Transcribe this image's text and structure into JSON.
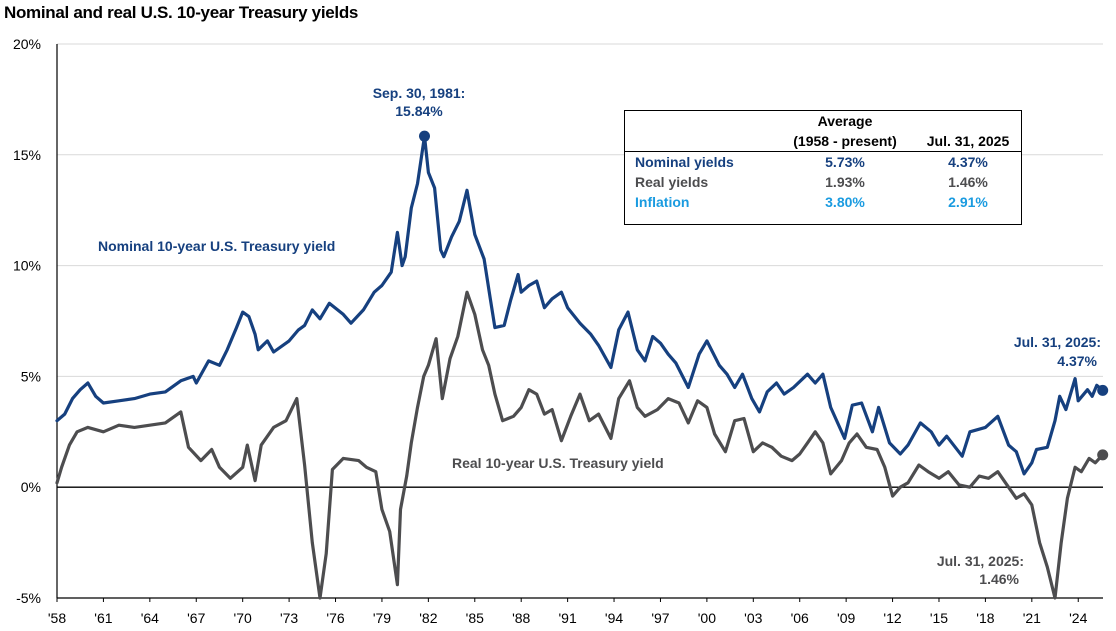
{
  "colors": {
    "nominal": "#16407f",
    "real": "#4d4d4f",
    "inflation": "#1a9be0",
    "axis": "#000000",
    "grid": "#d9d9d9"
  },
  "chart_data": {
    "type": "line",
    "title": "Nominal and real U.S. 10-year Treasury yields",
    "xlim": [
      1958,
      2025.6
    ],
    "ylim": [
      -5,
      20
    ],
    "grid": "horizontal",
    "y_ticks": [
      {
        "value": -5,
        "label": "-5%"
      },
      {
        "value": 0,
        "label": "0%"
      },
      {
        "value": 5,
        "label": "5%"
      },
      {
        "value": 10,
        "label": "10%"
      },
      {
        "value": 15,
        "label": "15%"
      },
      {
        "value": 20,
        "label": "20%"
      }
    ],
    "x_ticks": [
      {
        "value": 1958,
        "label": "'58"
      },
      {
        "value": 1961,
        "label": "'61"
      },
      {
        "value": 1964,
        "label": "'64"
      },
      {
        "value": 1967,
        "label": "'67"
      },
      {
        "value": 1970,
        "label": "'70"
      },
      {
        "value": 1973,
        "label": "'73"
      },
      {
        "value": 1976,
        "label": "'76"
      },
      {
        "value": 1979,
        "label": "'79"
      },
      {
        "value": 1982,
        "label": "'82"
      },
      {
        "value": 1985,
        "label": "'85"
      },
      {
        "value": 1988,
        "label": "'88"
      },
      {
        "value": 1991,
        "label": "'91"
      },
      {
        "value": 1994,
        "label": "'94"
      },
      {
        "value": 1997,
        "label": "'97"
      },
      {
        "value": 2000,
        "label": "'00"
      },
      {
        "value": 2003,
        "label": "'03"
      },
      {
        "value": 2006,
        "label": "'06"
      },
      {
        "value": 2009,
        "label": "'09"
      },
      {
        "value": 2012,
        "label": "'12"
      },
      {
        "value": 2015,
        "label": "'15"
      },
      {
        "value": 2018,
        "label": "'18"
      },
      {
        "value": 2021,
        "label": "'21"
      },
      {
        "value": 2024,
        "label": "'24"
      }
    ],
    "series": [
      {
        "name": "Nominal 10-year U.S. Treasury yield",
        "color": "#16407f",
        "points": [
          [
            1958.0,
            3.0
          ],
          [
            1958.5,
            3.3
          ],
          [
            1959.0,
            4.0
          ],
          [
            1959.5,
            4.4
          ],
          [
            1960.0,
            4.7
          ],
          [
            1960.5,
            4.1
          ],
          [
            1961.0,
            3.8
          ],
          [
            1962.0,
            3.9
          ],
          [
            1963.0,
            4.0
          ],
          [
            1964.0,
            4.2
          ],
          [
            1965.0,
            4.3
          ],
          [
            1966.0,
            4.8
          ],
          [
            1966.8,
            5.0
          ],
          [
            1967.0,
            4.7
          ],
          [
            1967.8,
            5.7
          ],
          [
            1968.5,
            5.5
          ],
          [
            1969.0,
            6.2
          ],
          [
            1969.6,
            7.2
          ],
          [
            1970.0,
            7.9
          ],
          [
            1970.4,
            7.7
          ],
          [
            1970.8,
            6.9
          ],
          [
            1971.0,
            6.2
          ],
          [
            1971.6,
            6.6
          ],
          [
            1972.0,
            6.1
          ],
          [
            1973.0,
            6.6
          ],
          [
            1973.6,
            7.1
          ],
          [
            1974.0,
            7.3
          ],
          [
            1974.5,
            8.0
          ],
          [
            1975.0,
            7.6
          ],
          [
            1975.6,
            8.3
          ],
          [
            1976.5,
            7.8
          ],
          [
            1977.0,
            7.4
          ],
          [
            1977.8,
            8.0
          ],
          [
            1978.5,
            8.8
          ],
          [
            1979.0,
            9.1
          ],
          [
            1979.6,
            9.7
          ],
          [
            1980.0,
            11.5
          ],
          [
            1980.3,
            10.0
          ],
          [
            1980.5,
            10.4
          ],
          [
            1980.9,
            12.6
          ],
          [
            1981.3,
            13.7
          ],
          [
            1981.75,
            15.84
          ],
          [
            1982.0,
            14.2
          ],
          [
            1982.4,
            13.5
          ],
          [
            1982.8,
            10.7
          ],
          [
            1983.0,
            10.4
          ],
          [
            1983.5,
            11.3
          ],
          [
            1984.0,
            12.0
          ],
          [
            1984.5,
            13.4
          ],
          [
            1985.0,
            11.4
          ],
          [
            1985.6,
            10.3
          ],
          [
            1986.0,
            8.5
          ],
          [
            1986.3,
            7.2
          ],
          [
            1986.9,
            7.3
          ],
          [
            1987.3,
            8.4
          ],
          [
            1987.8,
            9.6
          ],
          [
            1988.0,
            8.8
          ],
          [
            1988.5,
            9.1
          ],
          [
            1989.0,
            9.3
          ],
          [
            1989.5,
            8.1
          ],
          [
            1990.0,
            8.5
          ],
          [
            1990.6,
            8.8
          ],
          [
            1991.0,
            8.1
          ],
          [
            1991.8,
            7.4
          ],
          [
            1992.5,
            6.9
          ],
          [
            1993.0,
            6.4
          ],
          [
            1993.8,
            5.4
          ],
          [
            1994.3,
            7.1
          ],
          [
            1994.9,
            7.9
          ],
          [
            1995.5,
            6.2
          ],
          [
            1996.0,
            5.7
          ],
          [
            1996.5,
            6.8
          ],
          [
            1997.0,
            6.5
          ],
          [
            1997.5,
            6.0
          ],
          [
            1998.0,
            5.6
          ],
          [
            1998.8,
            4.5
          ],
          [
            1999.5,
            6.0
          ],
          [
            2000.0,
            6.6
          ],
          [
            2000.8,
            5.5
          ],
          [
            2001.3,
            5.1
          ],
          [
            2001.8,
            4.5
          ],
          [
            2002.3,
            5.1
          ],
          [
            2002.9,
            4.0
          ],
          [
            2003.4,
            3.4
          ],
          [
            2003.9,
            4.3
          ],
          [
            2004.5,
            4.7
          ],
          [
            2005.0,
            4.2
          ],
          [
            2005.6,
            4.5
          ],
          [
            2006.5,
            5.1
          ],
          [
            2007.0,
            4.7
          ],
          [
            2007.5,
            5.1
          ],
          [
            2008.0,
            3.6
          ],
          [
            2008.9,
            2.2
          ],
          [
            2009.4,
            3.7
          ],
          [
            2010.0,
            3.8
          ],
          [
            2010.7,
            2.5
          ],
          [
            2011.1,
            3.6
          ],
          [
            2011.8,
            2.0
          ],
          [
            2012.5,
            1.5
          ],
          [
            2013.0,
            1.9
          ],
          [
            2013.8,
            2.9
          ],
          [
            2014.5,
            2.5
          ],
          [
            2015.0,
            1.9
          ],
          [
            2015.5,
            2.3
          ],
          [
            2016.5,
            1.4
          ],
          [
            2017.0,
            2.5
          ],
          [
            2018.0,
            2.7
          ],
          [
            2018.8,
            3.2
          ],
          [
            2019.5,
            1.9
          ],
          [
            2020.0,
            1.6
          ],
          [
            2020.5,
            0.6
          ],
          [
            2021.0,
            1.1
          ],
          [
            2021.3,
            1.7
          ],
          [
            2022.0,
            1.8
          ],
          [
            2022.5,
            3.0
          ],
          [
            2022.8,
            4.1
          ],
          [
            2023.2,
            3.5
          ],
          [
            2023.8,
            4.9
          ],
          [
            2024.0,
            3.9
          ],
          [
            2024.6,
            4.4
          ],
          [
            2024.9,
            4.1
          ],
          [
            2025.2,
            4.6
          ],
          [
            2025.58,
            4.37
          ]
        ]
      },
      {
        "name": "Real 10-year U.S. Treasury yield",
        "color": "#4d4d4f",
        "points": [
          [
            1958.0,
            0.2
          ],
          [
            1958.3,
            0.9
          ],
          [
            1958.8,
            1.9
          ],
          [
            1959.3,
            2.5
          ],
          [
            1960.0,
            2.7
          ],
          [
            1961.0,
            2.5
          ],
          [
            1962.0,
            2.8
          ],
          [
            1963.0,
            2.7
          ],
          [
            1964.0,
            2.8
          ],
          [
            1965.0,
            2.9
          ],
          [
            1966.0,
            3.4
          ],
          [
            1966.5,
            1.8
          ],
          [
            1967.3,
            1.2
          ],
          [
            1968.0,
            1.7
          ],
          [
            1968.5,
            0.9
          ],
          [
            1969.2,
            0.4
          ],
          [
            1970.0,
            0.9
          ],
          [
            1970.3,
            1.9
          ],
          [
            1970.8,
            0.3
          ],
          [
            1971.2,
            1.9
          ],
          [
            1972.0,
            2.7
          ],
          [
            1972.8,
            3.0
          ],
          [
            1973.5,
            4.0
          ],
          [
            1974.0,
            1.0
          ],
          [
            1974.5,
            -2.5
          ],
          [
            1975.0,
            -5.0
          ],
          [
            1975.4,
            -3.0
          ],
          [
            1975.8,
            0.8
          ],
          [
            1976.5,
            1.3
          ],
          [
            1977.5,
            1.2
          ],
          [
            1978.0,
            0.9
          ],
          [
            1978.6,
            0.7
          ],
          [
            1979.0,
            -1.0
          ],
          [
            1979.5,
            -2.0
          ],
          [
            1980.0,
            -4.4
          ],
          [
            1980.2,
            -1.0
          ],
          [
            1980.6,
            0.5
          ],
          [
            1980.9,
            2.0
          ],
          [
            1981.3,
            3.6
          ],
          [
            1981.7,
            5.0
          ],
          [
            1982.0,
            5.5
          ],
          [
            1982.5,
            6.7
          ],
          [
            1982.9,
            4.0
          ],
          [
            1983.4,
            5.8
          ],
          [
            1983.9,
            6.8
          ],
          [
            1984.5,
            8.8
          ],
          [
            1985.0,
            7.8
          ],
          [
            1985.5,
            6.2
          ],
          [
            1985.9,
            5.5
          ],
          [
            1986.3,
            4.2
          ],
          [
            1986.8,
            3.0
          ],
          [
            1987.5,
            3.2
          ],
          [
            1988.0,
            3.6
          ],
          [
            1988.5,
            4.4
          ],
          [
            1989.0,
            4.2
          ],
          [
            1989.5,
            3.3
          ],
          [
            1990.0,
            3.5
          ],
          [
            1990.6,
            2.1
          ],
          [
            1991.2,
            3.2
          ],
          [
            1991.8,
            4.2
          ],
          [
            1992.4,
            3.0
          ],
          [
            1993.0,
            3.3
          ],
          [
            1993.8,
            2.2
          ],
          [
            1994.3,
            4.0
          ],
          [
            1995.0,
            4.8
          ],
          [
            1995.5,
            3.6
          ],
          [
            1996.0,
            3.2
          ],
          [
            1996.8,
            3.5
          ],
          [
            1997.5,
            4.0
          ],
          [
            1998.2,
            3.8
          ],
          [
            1998.8,
            2.9
          ],
          [
            1999.4,
            3.9
          ],
          [
            2000.0,
            3.6
          ],
          [
            2000.5,
            2.4
          ],
          [
            2001.2,
            1.6
          ],
          [
            2001.8,
            3.0
          ],
          [
            2002.4,
            3.1
          ],
          [
            2003.0,
            1.6
          ],
          [
            2003.6,
            2.0
          ],
          [
            2004.2,
            1.8
          ],
          [
            2004.8,
            1.4
          ],
          [
            2005.5,
            1.2
          ],
          [
            2006.0,
            1.5
          ],
          [
            2006.5,
            2.0
          ],
          [
            2007.0,
            2.5
          ],
          [
            2007.5,
            2.0
          ],
          [
            2008.0,
            0.6
          ],
          [
            2008.7,
            1.2
          ],
          [
            2009.2,
            2.0
          ],
          [
            2009.7,
            2.4
          ],
          [
            2010.3,
            1.8
          ],
          [
            2011.0,
            1.7
          ],
          [
            2011.5,
            0.9
          ],
          [
            2012.0,
            -0.4
          ],
          [
            2012.5,
            0.0
          ],
          [
            2013.0,
            0.2
          ],
          [
            2013.7,
            1.0
          ],
          [
            2014.3,
            0.7
          ],
          [
            2015.0,
            0.4
          ],
          [
            2015.6,
            0.7
          ],
          [
            2016.3,
            0.1
          ],
          [
            2017.0,
            0.0
          ],
          [
            2017.6,
            0.5
          ],
          [
            2018.2,
            0.4
          ],
          [
            2018.8,
            0.7
          ],
          [
            2019.3,
            0.2
          ],
          [
            2020.0,
            -0.5
          ],
          [
            2020.5,
            -0.3
          ],
          [
            2021.0,
            -0.8
          ],
          [
            2021.5,
            -2.5
          ],
          [
            2022.0,
            -3.6
          ],
          [
            2022.5,
            -5.0
          ],
          [
            2022.9,
            -2.5
          ],
          [
            2023.3,
            -0.5
          ],
          [
            2023.8,
            0.9
          ],
          [
            2024.2,
            0.7
          ],
          [
            2024.7,
            1.3
          ],
          [
            2025.1,
            1.1
          ],
          [
            2025.58,
            1.46
          ]
        ]
      }
    ],
    "annotations": [
      {
        "id": "peak",
        "lines": [
          "Sep. 30, 1981:",
          "15.84%"
        ],
        "x": 1981.75,
        "y": 15.84,
        "color": "#16407f"
      },
      {
        "id": "nominal_end",
        "lines": [
          "Jul. 31, 2025:",
          "4.37%"
        ],
        "x": 2025.58,
        "y": 4.37,
        "color": "#16407f"
      },
      {
        "id": "real_end",
        "lines": [
          "Jul. 31, 2025:",
          "1.46%"
        ],
        "x": 2025.58,
        "y": 1.46,
        "color": "#4d4d4f"
      }
    ],
    "series_labels": [
      {
        "text": "Nominal  10-year U.S.  Treasury yield",
        "color": "#16407f"
      },
      {
        "text": "Real 10-year U.S.  Treasury yield",
        "color": "#4d4d4f"
      }
    ]
  },
  "stats_table": {
    "header_top": "Average",
    "col1_header": "(1958 - present)",
    "col2_header": "Jul. 31, 2025",
    "rows": [
      {
        "label": "Nominal yields",
        "avg": "5.73%",
        "current": "4.37%",
        "color": "#16407f"
      },
      {
        "label": "Real yields",
        "avg": "1.93%",
        "current": "1.46%",
        "color": "#4d4d4f"
      },
      {
        "label": "Inflation",
        "avg": "3.80%",
        "current": "2.91%",
        "color": "#1a9be0"
      }
    ]
  }
}
